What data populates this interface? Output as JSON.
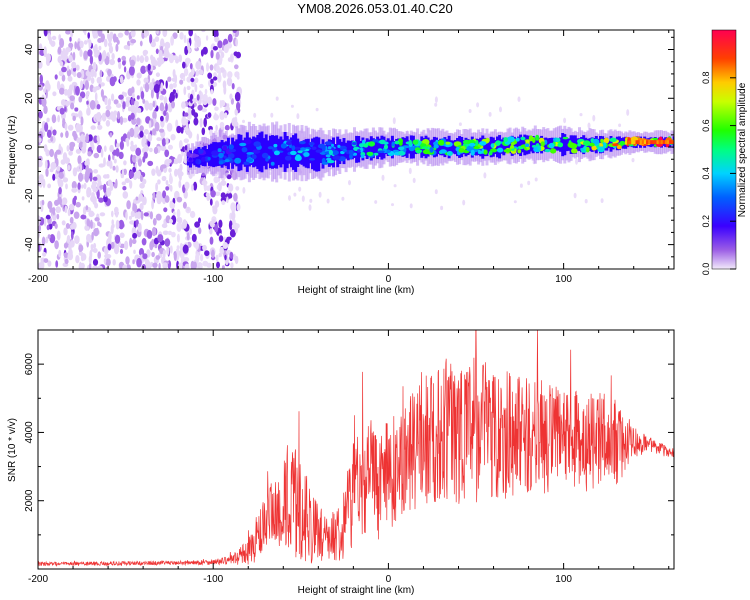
{
  "title": "YM08.2026.053.01.40.C20",
  "chart_data": [
    {
      "type": "heatmap",
      "xlabel": "Height of straight line (km)",
      "ylabel": "Frequency (Hz)",
      "xlim": [
        -200,
        163
      ],
      "ylim": [
        -50,
        48
      ],
      "xticks": [
        -200,
        -100,
        0,
        100
      ],
      "yticks": [
        -40,
        -20,
        0,
        20,
        40
      ],
      "colorbar": {
        "label": "Normalized spectral amplitude",
        "ticks": [
          0.0,
          0.2,
          0.4,
          0.6,
          0.8
        ],
        "range": [
          0,
          1
        ],
        "colormap": "rainbow (purple-blue-cyan-green-yellow-red)"
      },
      "noise_region_x": [
        -200,
        -85
      ],
      "signal_band": [
        {
          "x": -115,
          "center_hz": -5,
          "halfwidth_hz": 3,
          "amplitude": 0.15
        },
        {
          "x": -100,
          "center_hz": -3,
          "halfwidth_hz": 5,
          "amplitude": 0.3
        },
        {
          "x": -80,
          "center_hz": -2,
          "halfwidth_hz": 7,
          "amplitude": 0.35
        },
        {
          "x": -60,
          "center_hz": -2,
          "halfwidth_hz": 7,
          "amplitude": 0.4
        },
        {
          "x": -40,
          "center_hz": -3,
          "halfwidth_hz": 6,
          "amplitude": 0.4
        },
        {
          "x": -20,
          "center_hz": -1,
          "halfwidth_hz": 5,
          "amplitude": 0.45
        },
        {
          "x": 0,
          "center_hz": 0,
          "halfwidth_hz": 4,
          "amplitude": 0.55
        },
        {
          "x": 20,
          "center_hz": 0,
          "halfwidth_hz": 4,
          "amplitude": 0.6
        },
        {
          "x": 40,
          "center_hz": 0,
          "halfwidth_hz": 4,
          "amplitude": 0.6
        },
        {
          "x": 60,
          "center_hz": 0,
          "halfwidth_hz": 4,
          "amplitude": 0.65
        },
        {
          "x": 80,
          "center_hz": 1,
          "halfwidth_hz": 4,
          "amplitude": 0.65
        },
        {
          "x": 100,
          "center_hz": 1,
          "halfwidth_hz": 4,
          "amplitude": 0.7
        },
        {
          "x": 120,
          "center_hz": 1,
          "halfwidth_hz": 3,
          "amplitude": 0.75
        },
        {
          "x": 140,
          "center_hz": 2,
          "halfwidth_hz": 2,
          "amplitude": 0.9
        },
        {
          "x": 163,
          "center_hz": 2,
          "halfwidth_hz": 2,
          "amplitude": 0.95
        }
      ]
    },
    {
      "type": "line",
      "xlabel": "Height of straight line (km)",
      "ylabel": "SNR (10 * v/v)",
      "xlim": [
        -200,
        163
      ],
      "ylim": [
        0,
        7000
      ],
      "xticks": [
        -200,
        -100,
        0,
        100
      ],
      "yticks": [
        2000,
        4000,
        6000
      ],
      "color": "#ee3333",
      "series": [
        {
          "x": [
            -200,
            -180,
            -160,
            -140,
            -120,
            -100,
            -90,
            -80,
            -75,
            -70,
            -65,
            -60,
            -55,
            -50,
            -45,
            -40,
            -35,
            -30,
            -25,
            -20,
            -15,
            -10,
            -5,
            0,
            5,
            10,
            15,
            20,
            25,
            30,
            35,
            40,
            45,
            50,
            55,
            60,
            65,
            70,
            75,
            80,
            85,
            90,
            95,
            100,
            105,
            110,
            115,
            120,
            125,
            130,
            135,
            140,
            145,
            150,
            155,
            163
          ],
          "y": [
            150,
            150,
            160,
            170,
            180,
            200,
            260,
            500,
            900,
            1300,
            1600,
            1800,
            2000,
            1700,
            1400,
            1000,
            900,
            1000,
            1500,
            2300,
            2700,
            2600,
            2500,
            2700,
            3000,
            3300,
            3500,
            3700,
            3900,
            4000,
            4100,
            4100,
            4100,
            4100,
            4100,
            4100,
            4000,
            4000,
            3950,
            3900,
            3900,
            3850,
            3800,
            3800,
            3750,
            3750,
            3700,
            3700,
            3700,
            3700,
            3700,
            3700,
            3650,
            3600,
            3500,
            3400
          ],
          "spread": [
            60,
            60,
            60,
            60,
            60,
            80,
            120,
            400,
            700,
            900,
            1100,
            1400,
            1700,
            1500,
            1300,
            800,
            600,
            800,
            1200,
            1600,
            1700,
            1700,
            1700,
            1600,
            1600,
            1700,
            1800,
            1900,
            2000,
            2100,
            2200,
            2200,
            2200,
            2200,
            2200,
            2100,
            2000,
            1900,
            1800,
            1700,
            1700,
            1700,
            1600,
            1600,
            1500,
            1500,
            1500,
            1500,
            1400,
            1300,
            900,
            500,
            300,
            250,
            200,
            150
          ]
        }
      ]
    }
  ]
}
